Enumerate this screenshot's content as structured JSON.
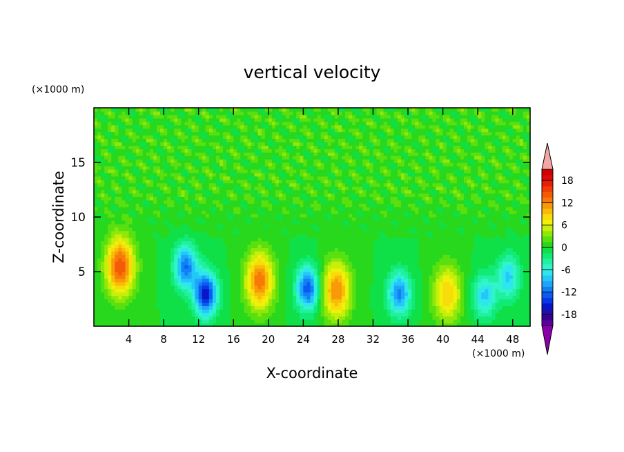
{
  "chart_data": {
    "type": "heatmap",
    "title": "vertical velocity",
    "xlabel": "X-coordinate",
    "ylabel": "Z-coordinate",
    "x_unit": "(×1000 m)",
    "y_unit": "(×1000 m)",
    "xlim": [
      0,
      50
    ],
    "ylim": [
      0,
      20
    ],
    "x_ticks": [
      4,
      8,
      12,
      16,
      20,
      24,
      28,
      32,
      36,
      40,
      44,
      48
    ],
    "y_ticks": [
      5,
      10,
      15
    ],
    "grid": false,
    "colorbar": {
      "position": "right",
      "levels": [
        -21,
        -19.5,
        -18,
        -16.5,
        -15,
        -13.5,
        -12,
        -10.5,
        -9,
        -7.5,
        -6,
        -4.5,
        -3,
        -1.5,
        0,
        1.5,
        3,
        4.5,
        6,
        7.5,
        9,
        10.5,
        12,
        13.5,
        15,
        16.5,
        18,
        19.5,
        21
      ],
      "tick_labels": [
        "18",
        "12",
        "6",
        "0",
        "-6",
        "-12",
        "-18"
      ],
      "tick_values": [
        18,
        12,
        6,
        0,
        -6,
        -12,
        -18
      ],
      "extend": "both"
    },
    "features": [
      {
        "sign": "up",
        "x": 3.0,
        "z": 5.5,
        "peak": 15
      },
      {
        "sign": "down",
        "x": 10.5,
        "z": 5.5,
        "peak": -12
      },
      {
        "sign": "down",
        "x": 12.8,
        "z": 3.0,
        "peak": -16
      },
      {
        "sign": "up",
        "x": 19.0,
        "z": 4.2,
        "peak": 13
      },
      {
        "sign": "down",
        "x": 24.5,
        "z": 3.5,
        "peak": -13
      },
      {
        "sign": "up",
        "x": 27.8,
        "z": 3.3,
        "peak": 12
      },
      {
        "sign": "down",
        "x": 35.0,
        "z": 3.0,
        "peak": -11
      },
      {
        "sign": "up",
        "x": 40.5,
        "z": 3.0,
        "peak": 9
      },
      {
        "sign": "down",
        "x": 44.8,
        "z": 2.8,
        "peak": -8
      },
      {
        "sign": "down",
        "x": 47.5,
        "z": 4.5,
        "peak": -8
      }
    ],
    "colors": {
      "extend_high": "#f4a6a6",
      "extend_low": "#8a00a8",
      "palette": [
        "#5a00a0",
        "#3a0090",
        "#1e10a8",
        "#0a14c8",
        "#0a36e6",
        "#0a5cf0",
        "#1080f5",
        "#1ea4f8",
        "#22c8f8",
        "#2ee6ee",
        "#30f5c8",
        "#22f0a0",
        "#10eb78",
        "#10e048",
        "#28d81c",
        "#5ae010",
        "#90e80a",
        "#c8ef0a",
        "#f0f00a",
        "#f8dc0a",
        "#f8bc08",
        "#f89a08",
        "#f87808",
        "#f45a08",
        "#f03c08",
        "#e81e08",
        "#e00808",
        "#d00000"
      ]
    }
  }
}
